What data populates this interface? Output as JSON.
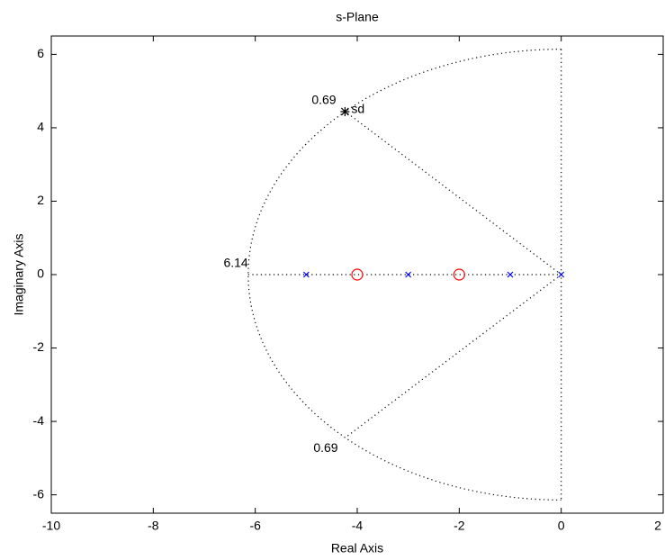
{
  "chart_data": {
    "type": "pzmap",
    "title": "s-Plane",
    "x_label": "Real Axis",
    "y_label": "Imaginary Axis",
    "xlim": [
      -10,
      2
    ],
    "ylim": [
      -6.5,
      6.5
    ],
    "xticks": [
      -10,
      -8,
      -6,
      -4,
      -2,
      0,
      2
    ],
    "yticks": [
      -6,
      -4,
      -2,
      0,
      2,
      4,
      6
    ],
    "sgrid": {
      "zeta": 0.69,
      "wn": 6.14
    },
    "series": [
      {
        "marker": "x",
        "color": "#0000ff",
        "x": [
          -5,
          -3,
          -1,
          0
        ],
        "values": [
          0,
          0,
          0,
          0
        ]
      },
      {
        "marker": "o",
        "color": "#ff0000",
        "x": [
          -4,
          -2
        ],
        "values": [
          0,
          0
        ]
      },
      {
        "name": "sd",
        "marker": "*",
        "color": "#000000",
        "x": [
          -4.24
        ],
        "values": [
          4.44
        ]
      }
    ]
  }
}
